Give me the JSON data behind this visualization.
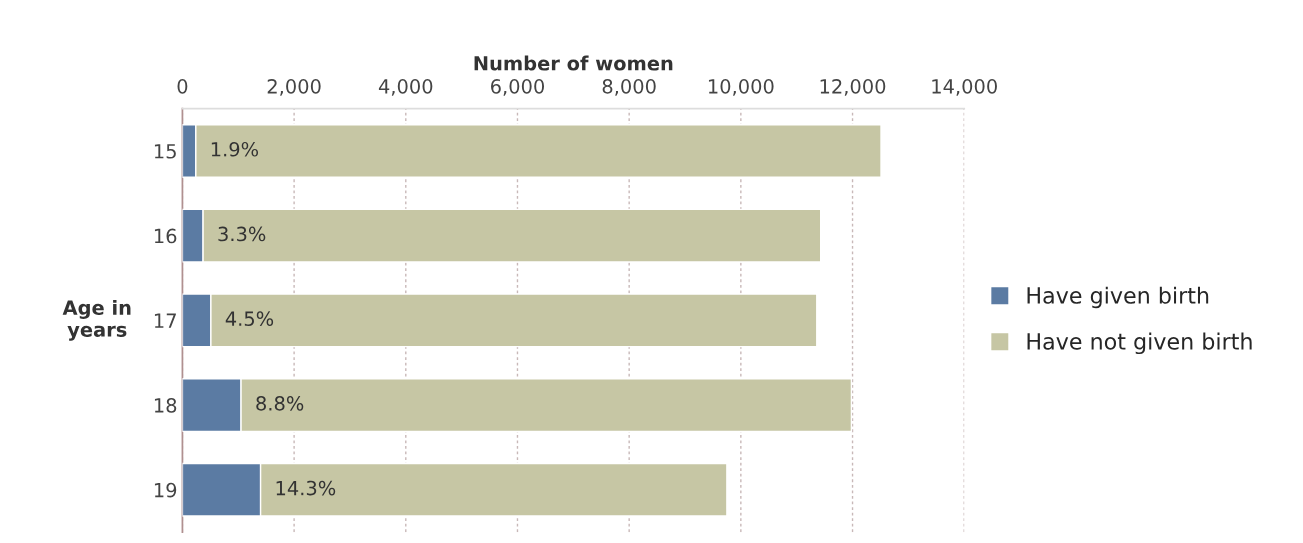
{
  "chart_data": {
    "type": "bar",
    "orientation": "horizontal",
    "stacked": true,
    "xlabel": "Number of women",
    "ylabel": "Age in\nyears",
    "categories": [
      "15",
      "16",
      "17",
      "18",
      "19"
    ],
    "series": [
      {
        "name": "Have given birth",
        "color": "#5b7ba3",
        "values": [
          240,
          370,
          510,
          1050,
          1400
        ]
      },
      {
        "name": "Have not given birth",
        "color": "#c6c6a4",
        "values": [
          12270,
          11060,
          10850,
          10930,
          8350
        ]
      }
    ],
    "xlim": [
      0,
      14000
    ],
    "xticks": [
      {
        "value": 0,
        "label": "0"
      },
      {
        "value": 2000,
        "label": "2,000"
      },
      {
        "value": 4000,
        "label": "4,000"
      },
      {
        "value": 6000,
        "label": "6,000"
      },
      {
        "value": 8000,
        "label": "8,000"
      },
      {
        "value": 10000,
        "label": "10,000"
      },
      {
        "value": 12000,
        "label": "12,000"
      },
      {
        "value": 14000,
        "label": "14,000"
      }
    ],
    "annotations": [
      {
        "text": "1.9%",
        "x": 240,
        "y": "15"
      },
      {
        "text": "3.3%",
        "x": 370,
        "y": "16"
      },
      {
        "text": "4.5%",
        "x": 510,
        "y": "17"
      },
      {
        "text": "8.8%",
        "x": 1050,
        "y": "18"
      },
      {
        "text": "14.3%",
        "x": 1400,
        "y": "19"
      }
    ],
    "grid": "x",
    "legend": "right"
  }
}
